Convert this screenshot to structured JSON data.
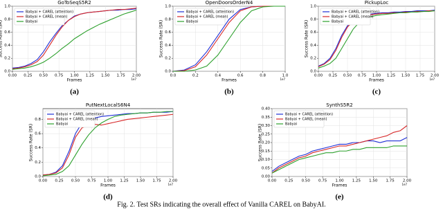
{
  "caption": "Fig. 2. Test SRs indicating the overall effect of Vanilla CAREL on BabyAI.",
  "chart_data": [
    {
      "type": "line",
      "title": "GoToSeqS5R2",
      "panel_label": "(a)",
      "x_label": "Frames",
      "y_label": "Success Rate (SR)",
      "x_exponent": "1e7",
      "grid": true,
      "legend": "upper left",
      "x": [
        0,
        0.1,
        0.2,
        0.3,
        0.4,
        0.5,
        0.6,
        0.7,
        0.8,
        0.9,
        1.0,
        1.1,
        1.2,
        1.3,
        1.4,
        1.5,
        1.6,
        1.7,
        1.8,
        1.9,
        2.0
      ],
      "xlim": [
        0,
        2
      ],
      "ylim": [
        0,
        1
      ],
      "xticks": [
        {
          "value": 0,
          "label": "0.00"
        },
        {
          "value": 0.25,
          "label": "0.25"
        },
        {
          "value": 0.5,
          "label": "0.50"
        },
        {
          "value": 0.75,
          "label": "0.75"
        },
        {
          "value": 1,
          "label": "1.00"
        },
        {
          "value": 1.25,
          "label": "1.25"
        },
        {
          "value": 1.5,
          "label": "1.50"
        },
        {
          "value": 1.75,
          "label": "1.75"
        },
        {
          "value": 2,
          "label": "2.00"
        }
      ],
      "yticks": [
        {
          "value": 0,
          "label": "0.0"
        },
        0.2,
        0.4,
        0.6,
        0.8,
        {
          "value": 1,
          "label": "1.0"
        }
      ],
      "series": [
        {
          "name": "Babyai + CAREL (attention)",
          "color": "#1f2fd6",
          "values": [
            0.05,
            0.06,
            0.08,
            0.12,
            0.18,
            0.3,
            0.45,
            0.58,
            0.7,
            0.78,
            0.85,
            0.88,
            0.9,
            0.91,
            0.92,
            0.93,
            0.94,
            0.94,
            0.95,
            0.95,
            0.96
          ]
        },
        {
          "name": "Babyai + CAREL (mean)",
          "color": "#d62728",
          "values": [
            0.04,
            0.05,
            0.07,
            0.1,
            0.15,
            0.25,
            0.4,
            0.55,
            0.68,
            0.78,
            0.84,
            0.88,
            0.9,
            0.91,
            0.92,
            0.93,
            0.94,
            0.95,
            0.95,
            0.96,
            0.97
          ]
        },
        {
          "name": "Babyai",
          "color": "#2ca02c",
          "values": [
            0.03,
            0.04,
            0.05,
            0.07,
            0.1,
            0.14,
            0.2,
            0.27,
            0.35,
            0.42,
            0.5,
            0.56,
            0.62,
            0.67,
            0.72,
            0.76,
            0.8,
            0.84,
            0.88,
            0.91,
            0.94
          ]
        }
      ]
    },
    {
      "type": "line",
      "title": "OpenDoorsOrderN4",
      "panel_label": "(b)",
      "x_label": "Frames",
      "y_label": "Success Rate (SR)",
      "x_exponent": "1e7",
      "grid": true,
      "legend": "upper left",
      "x": [
        0,
        0.1,
        0.2,
        0.3,
        0.4,
        0.5,
        0.6,
        0.7,
        0.8,
        0.9,
        1.0
      ],
      "xlim": [
        0,
        1
      ],
      "ylim": [
        0,
        1
      ],
      "xticks": [
        {
          "value": 0,
          "label": "0.0"
        },
        0.2,
        0.4,
        0.6,
        0.8,
        {
          "value": 1,
          "label": "1.0"
        }
      ],
      "yticks": [
        {
          "value": 0,
          "label": "0.0"
        },
        0.2,
        0.4,
        0.6,
        0.8,
        {
          "value": 1,
          "label": "1.0"
        }
      ],
      "series": [
        {
          "name": "Babyai + CAREL (attention)",
          "color": "#1f2fd6",
          "values": [
            0,
            0.02,
            0.1,
            0.3,
            0.55,
            0.8,
            0.95,
            0.99,
            1,
            1,
            1
          ]
        },
        {
          "name": "Babyai + CAREL (mean)",
          "color": "#d62728",
          "values": [
            0,
            0.01,
            0.07,
            0.25,
            0.5,
            0.75,
            0.93,
            0.99,
            1,
            1,
            1
          ]
        },
        {
          "name": "Babyai",
          "color": "#2ca02c",
          "values": [
            0,
            0,
            0.02,
            0.08,
            0.25,
            0.5,
            0.75,
            0.93,
            0.99,
            1,
            1
          ]
        }
      ]
    },
    {
      "type": "line",
      "title": "PickupLoc",
      "panel_label": "(c)",
      "x_label": "Frames",
      "y_label": "Success Rate (SR)",
      "x_exponent": "1e7",
      "grid": true,
      "legend": "upper left",
      "x": [
        0,
        0.1,
        0.2,
        0.3,
        0.4,
        0.5,
        0.6,
        0.7,
        0.8,
        0.9,
        1.0,
        1.1,
        1.2,
        1.3,
        1.4,
        1.5,
        1.6,
        1.7,
        1.8,
        1.9,
        2.0
      ],
      "xlim": [
        0,
        2
      ],
      "ylim": [
        0,
        1
      ],
      "xticks": [
        {
          "value": 0,
          "label": "0.00"
        },
        {
          "value": 0.25,
          "label": "0.25"
        },
        {
          "value": 0.5,
          "label": "0.50"
        },
        {
          "value": 0.75,
          "label": "0.75"
        },
        {
          "value": 1,
          "label": "1.00"
        },
        {
          "value": 1.25,
          "label": "1.25"
        },
        {
          "value": 1.5,
          "label": "1.50"
        },
        {
          "value": 1.75,
          "label": "1.75"
        },
        {
          "value": 2,
          "label": "2.00"
        }
      ],
      "yticks": [
        {
          "value": 0,
          "label": "0.0"
        },
        0.2,
        0.4,
        0.6,
        0.8,
        {
          "value": 1,
          "label": "1.0"
        }
      ],
      "series": [
        {
          "name": "Babyai + CAREL (attention)",
          "color": "#1f2fd6",
          "values": [
            0.08,
            0.12,
            0.2,
            0.35,
            0.55,
            0.7,
            0.78,
            0.83,
            0.86,
            0.88,
            0.89,
            0.9,
            0.9,
            0.91,
            0.91,
            0.92,
            0.92,
            0.93,
            0.93,
            0.93,
            0.94
          ]
        },
        {
          "name": "Babyai + CAREL (mean)",
          "color": "#d62728",
          "values": [
            0.07,
            0.11,
            0.18,
            0.32,
            0.52,
            0.68,
            0.77,
            0.82,
            0.85,
            0.87,
            0.88,
            0.89,
            0.89,
            0.9,
            0.9,
            0.91,
            0.91,
            0.92,
            0.92,
            0.93,
            0.93
          ]
        },
        {
          "name": "Babyai",
          "color": "#2ca02c",
          "values": [
            0.05,
            0.08,
            0.12,
            0.2,
            0.35,
            0.5,
            0.65,
            0.75,
            0.8,
            0.84,
            0.86,
            0.87,
            0.88,
            0.89,
            0.9,
            0.9,
            0.91,
            0.91,
            0.92,
            0.92,
            0.93
          ]
        }
      ]
    },
    {
      "type": "line",
      "title": "PutNextLocalS6N4",
      "panel_label": "(d)",
      "x_label": "Frames",
      "y_label": "Success Rate (SR)",
      "x_exponent": "1e7",
      "grid": true,
      "legend": "upper left",
      "x": [
        0,
        0.1,
        0.2,
        0.3,
        0.4,
        0.5,
        0.6,
        0.7,
        0.8,
        0.9,
        1.0,
        1.1,
        1.2,
        1.3,
        1.4,
        1.5,
        1.6,
        1.7,
        1.8,
        1.9,
        2.0
      ],
      "xlim": [
        0,
        2
      ],
      "ylim": [
        0,
        0.95
      ],
      "xticks": [
        {
          "value": 0,
          "label": "0.00"
        },
        {
          "value": 0.25,
          "label": "0.25"
        },
        {
          "value": 0.5,
          "label": "0.50"
        },
        {
          "value": 0.75,
          "label": "0.75"
        },
        {
          "value": 1,
          "label": "1.00"
        },
        {
          "value": 1.25,
          "label": "1.25"
        },
        {
          "value": 1.5,
          "label": "1.50"
        },
        {
          "value": 1.75,
          "label": "1.75"
        },
        {
          "value": 2,
          "label": "2.00"
        }
      ],
      "yticks": [
        {
          "value": 0,
          "label": "0.0"
        },
        0.2,
        0.4,
        0.6,
        0.8
      ],
      "series": [
        {
          "name": "Babyai + CAREL (attention)",
          "color": "#1f2fd6",
          "values": [
            0.02,
            0.03,
            0.06,
            0.15,
            0.35,
            0.6,
            0.75,
            0.8,
            0.82,
            0.84,
            0.85,
            0.86,
            0.87,
            0.88,
            0.88,
            0.89,
            0.89,
            0.9,
            0.9,
            0.9,
            0.91
          ]
        },
        {
          "name": "Babyai + CAREL (mean)",
          "color": "#d62728",
          "values": [
            0.02,
            0.03,
            0.05,
            0.12,
            0.3,
            0.55,
            0.68,
            0.72,
            0.73,
            0.72,
            0.74,
            0.76,
            0.78,
            0.8,
            0.81,
            0.82,
            0.83,
            0.84,
            0.85,
            0.86,
            0.87
          ]
        },
        {
          "name": "Babyai",
          "color": "#2ca02c",
          "values": [
            0.01,
            0.02,
            0.03,
            0.07,
            0.15,
            0.3,
            0.45,
            0.58,
            0.68,
            0.75,
            0.8,
            0.84,
            0.86,
            0.87,
            0.88,
            0.89,
            0.89,
            0.9,
            0.9,
            0.91,
            0.91
          ]
        }
      ]
    },
    {
      "type": "line",
      "title": "SynthS5R2",
      "panel_label": "(e)",
      "x_label": "Frames",
      "y_label": "Success Rate (SR)",
      "x_exponent": "1e7",
      "grid": true,
      "legend": "upper left",
      "x": [
        0,
        0.1,
        0.2,
        0.3,
        0.4,
        0.5,
        0.6,
        0.7,
        0.8,
        0.9,
        1.0,
        1.1,
        1.2,
        1.3,
        1.4,
        1.5,
        1.6,
        1.7,
        1.8,
        1.9,
        2.0
      ],
      "xlim": [
        0,
        2
      ],
      "ylim": [
        0,
        0.4
      ],
      "xticks": [
        {
          "value": 0,
          "label": "0.00"
        },
        {
          "value": 0.25,
          "label": "0.25"
        },
        {
          "value": 0.5,
          "label": "0.50"
        },
        {
          "value": 0.75,
          "label": "0.75"
        },
        {
          "value": 1,
          "label": "1.00"
        },
        {
          "value": 1.25,
          "label": "1.25"
        },
        {
          "value": 1.5,
          "label": "1.50"
        },
        {
          "value": 1.75,
          "label": "1.75"
        },
        {
          "value": 2,
          "label": "2.00"
        }
      ],
      "yticks": [
        {
          "value": 0,
          "label": "0.00"
        },
        0.05,
        {
          "value": 0.1,
          "label": "0.10"
        },
        0.15,
        {
          "value": 0.2,
          "label": "0.20"
        },
        0.25,
        {
          "value": 0.3,
          "label": "0.30"
        },
        0.35,
        {
          "value": 0.4,
          "label": "0.40"
        }
      ],
      "series": [
        {
          "name": "Babyai + CAREL (attention)",
          "color": "#1f2fd6",
          "values": [
            0.03,
            0.06,
            0.08,
            0.1,
            0.12,
            0.13,
            0.15,
            0.16,
            0.17,
            0.18,
            0.19,
            0.19,
            0.2,
            0.2,
            0.21,
            0.21,
            0.2,
            0.21,
            0.21,
            0.21,
            0.23
          ]
        },
        {
          "name": "Babyai + CAREL (mean)",
          "color": "#d62728",
          "values": [
            0.02,
            0.05,
            0.07,
            0.09,
            0.11,
            0.12,
            0.14,
            0.15,
            0.16,
            0.17,
            0.18,
            0.18,
            0.19,
            0.2,
            0.21,
            0.22,
            0.23,
            0.24,
            0.26,
            0.27,
            0.3
          ]
        },
        {
          "name": "Babyai",
          "color": "#2ca02c",
          "values": [
            0.02,
            0.04,
            0.06,
            0.08,
            0.1,
            0.11,
            0.12,
            0.13,
            0.14,
            0.14,
            0.15,
            0.15,
            0.16,
            0.16,
            0.17,
            0.17,
            0.17,
            0.17,
            0.18,
            0.18,
            0.18
          ]
        }
      ]
    }
  ]
}
